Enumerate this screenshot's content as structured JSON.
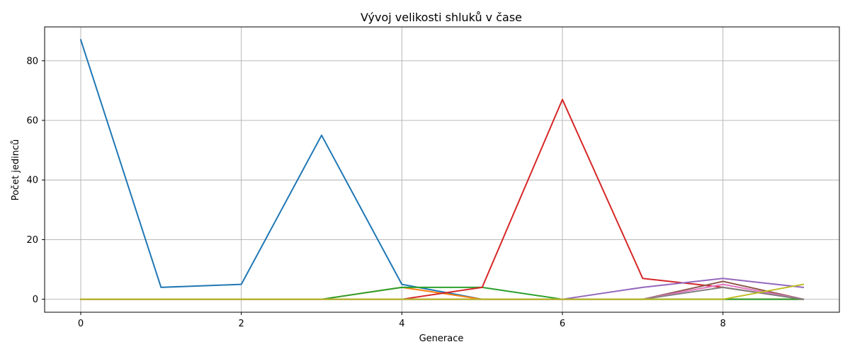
{
  "chart_data": {
    "type": "line",
    "title": "Vývoj velikosti shluků v čase",
    "xlabel": "Generace",
    "ylabel": "Počet jedinců",
    "xlim": [
      -0.45,
      9.45
    ],
    "ylim": [
      -4.35,
      91.35
    ],
    "xticks": [
      0,
      2,
      4,
      6,
      8
    ],
    "yticks": [
      0,
      20,
      40,
      60,
      80
    ],
    "grid": true,
    "x": [
      0,
      1,
      2,
      3,
      4,
      5,
      6,
      7,
      8,
      9
    ],
    "series": [
      {
        "color": "#1f77b4",
        "values": [
          87,
          4,
          5,
          55,
          5,
          0,
          0,
          0,
          0,
          0
        ]
      },
      {
        "color": "#ff7f0e",
        "values": [
          0,
          0,
          0,
          0,
          4,
          0,
          0,
          0,
          0,
          0
        ]
      },
      {
        "color": "#2ca02c",
        "values": [
          0,
          0,
          0,
          0,
          4,
          4,
          0,
          0,
          0,
          0
        ]
      },
      {
        "color": "#d62728",
        "values": [
          0,
          0,
          0,
          0,
          0,
          4,
          67,
          7,
          4,
          0
        ]
      },
      {
        "color": "#9467bd",
        "values": [
          0,
          0,
          0,
          0,
          0,
          0,
          0,
          4,
          7,
          4
        ]
      },
      {
        "color": "#8c564b",
        "values": [
          0,
          0,
          0,
          0,
          0,
          0,
          0,
          0,
          6,
          0
        ]
      },
      {
        "color": "#e377c2",
        "values": [
          0,
          0,
          0,
          0,
          0,
          0,
          0,
          0,
          5,
          0
        ]
      },
      {
        "color": "#7f7f7f",
        "values": [
          0,
          0,
          0,
          0,
          0,
          0,
          0,
          0,
          4,
          0
        ]
      },
      {
        "color": "#bcbd22",
        "values": [
          0,
          0,
          0,
          0,
          0,
          0,
          0,
          0,
          0,
          5
        ]
      }
    ]
  }
}
